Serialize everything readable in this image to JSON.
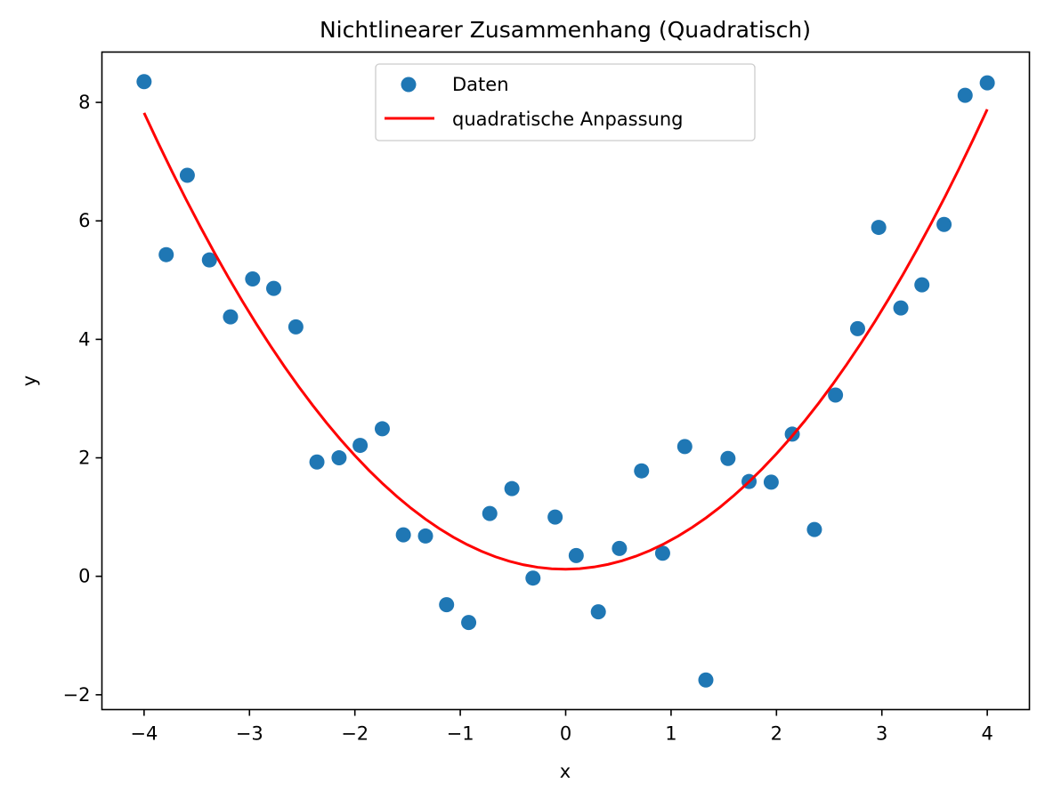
{
  "chart_data": {
    "type": "scatter",
    "title": "Nichtlinearer Zusammenhang (Quadratisch)",
    "xlabel": "x",
    "ylabel": "y",
    "xlim": [
      -4.4,
      4.4
    ],
    "ylim": [
      -2.25,
      8.85
    ],
    "xticks": [
      -4,
      -3,
      -2,
      -1,
      0,
      1,
      2,
      3,
      4
    ],
    "yticks": [
      -2,
      0,
      2,
      4,
      6,
      8
    ],
    "grid": false,
    "legend_position": "top-center",
    "colors": {
      "points": "#1f77b4",
      "fit": "#ff0000"
    },
    "series": [
      {
        "name": "Daten",
        "kind": "scatter",
        "points": [
          [
            -4.0,
            8.35
          ],
          [
            -3.79,
            5.43
          ],
          [
            -3.59,
            6.77
          ],
          [
            -3.38,
            5.34
          ],
          [
            -3.18,
            4.38
          ],
          [
            -2.97,
            5.02
          ],
          [
            -2.77,
            4.86
          ],
          [
            -2.56,
            4.21
          ],
          [
            -2.36,
            1.93
          ],
          [
            -2.15,
            2.0
          ],
          [
            -1.95,
            2.21
          ],
          [
            -1.74,
            2.49
          ],
          [
            -1.54,
            0.7
          ],
          [
            -1.33,
            0.68
          ],
          [
            -1.13,
            -0.48
          ],
          [
            -0.92,
            -0.78
          ],
          [
            -0.72,
            1.06
          ],
          [
            -0.51,
            1.48
          ],
          [
            -0.31,
            -0.03
          ],
          [
            -0.1,
            1.0
          ],
          [
            0.1,
            0.35
          ],
          [
            0.31,
            -0.6
          ],
          [
            0.51,
            0.47
          ],
          [
            0.72,
            1.78
          ],
          [
            0.92,
            0.39
          ],
          [
            1.13,
            2.19
          ],
          [
            1.33,
            -1.75
          ],
          [
            1.54,
            1.99
          ],
          [
            1.74,
            1.6
          ],
          [
            1.95,
            1.59
          ],
          [
            2.15,
            2.4
          ],
          [
            2.36,
            0.79
          ],
          [
            2.56,
            3.06
          ],
          [
            2.77,
            4.18
          ],
          [
            2.97,
            5.89
          ],
          [
            3.18,
            4.53
          ],
          [
            3.38,
            4.92
          ],
          [
            3.59,
            5.94
          ],
          [
            3.79,
            8.12
          ],
          [
            4.0,
            8.33
          ]
        ]
      },
      {
        "name": "quadratische Anpassung",
        "kind": "line",
        "quadratic_coefficients": {
          "a": 0.4833,
          "b": 0.0075,
          "c": 0.12
        }
      }
    ]
  }
}
